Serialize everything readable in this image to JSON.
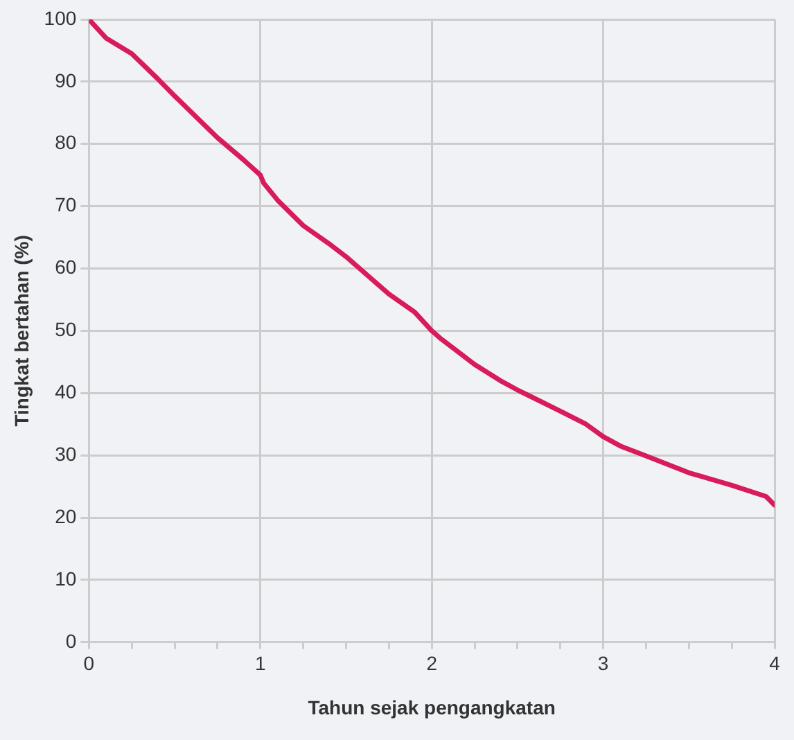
{
  "chart_data": {
    "type": "line",
    "xlabel": "Tahun sejak pengangkatan",
    "ylabel": "Tingkat bertahan (%)",
    "x": [
      0,
      0.1,
      0.25,
      0.4,
      0.5,
      0.75,
      0.9,
      1,
      1.02,
      1.1,
      1.25,
      1.4,
      1.5,
      1.75,
      1.9,
      2,
      2.05,
      2.25,
      2.4,
      2.5,
      2.75,
      2.9,
      3,
      3.1,
      3.25,
      3.5,
      3.75,
      3.95,
      4
    ],
    "series": [
      {
        "color": "#d81b5a",
        "values": [
          100,
          97,
          94.5,
          90.5,
          87.7,
          81,
          77.5,
          75,
          73.7,
          71,
          66.9,
          64,
          61.9,
          55.9,
          53,
          50,
          48.8,
          44.6,
          42,
          40.5,
          37.1,
          35,
          33,
          31.5,
          29.9,
          27.2,
          25.2,
          23.4,
          22
        ]
      }
    ],
    "xlim": [
      0,
      4
    ],
    "xticks": [
      0,
      {
        "value": 0.25,
        "label": null
      },
      {
        "value": 0.5,
        "label": null
      },
      {
        "value": 0.75,
        "label": null
      },
      1,
      {
        "value": 1.25,
        "label": null
      },
      {
        "value": 1.5,
        "label": null
      },
      {
        "value": 1.75,
        "label": null
      },
      2,
      {
        "value": 2.25,
        "label": null
      },
      {
        "value": 2.5,
        "label": null
      },
      {
        "value": 2.75,
        "label": null
      },
      3,
      {
        "value": 3.25,
        "label": null
      },
      {
        "value": 3.5,
        "label": null
      },
      {
        "value": 3.75,
        "label": null
      },
      4
    ],
    "ylim": [
      0,
      100
    ],
    "yticks": [
      0,
      10,
      20,
      30,
      40,
      50,
      60,
      70,
      80,
      90,
      100
    ],
    "grid": true,
    "legend": false,
    "marker": "none",
    "line_style": "solid"
  }
}
